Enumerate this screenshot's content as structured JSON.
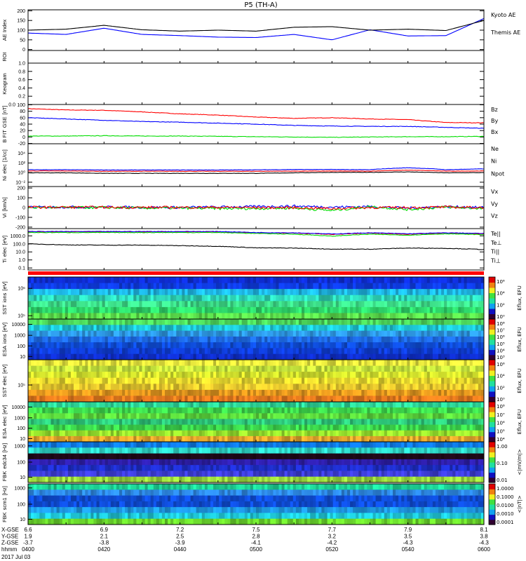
{
  "title": "P5 (TH-A)",
  "date": "2017 Jul 03",
  "chart_data": [
    {
      "id": "ae",
      "type": "line",
      "ylabel": [
        "AE Index"
      ],
      "ylim": [
        -5,
        205
      ],
      "log": false,
      "yticks": [
        {
          "v": 0,
          "t": "0"
        },
        {
          "v": 50,
          "t": "50"
        },
        {
          "v": 100,
          "t": "100"
        },
        {
          "v": 150,
          "t": "150"
        },
        {
          "v": 200,
          "t": "200"
        }
      ],
      "x_minutes": [
        0,
        10,
        20,
        30,
        40,
        50,
        60,
        70,
        80,
        90,
        100,
        110,
        120
      ],
      "series": [
        {
          "name": "Kyoto AE",
          "color": "#0000ff",
          "values": [
            85,
            78,
            110,
            78,
            72,
            64,
            62,
            78,
            50,
            102,
            70,
            72,
            160
          ]
        },
        {
          "name": "Themis AE",
          "color": "#000000",
          "values": [
            100,
            105,
            125,
            102,
            95,
            100,
            95,
            115,
            118,
            100,
            105,
            98,
            150
          ]
        }
      ]
    },
    {
      "id": "roi",
      "type": "line",
      "ylabel": [
        "ROI"
      ],
      "yticks": [],
      "series": []
    },
    {
      "id": "keo",
      "type": "line",
      "ylabel": [
        "Keogram"
      ],
      "ylim": [
        0,
        1
      ],
      "log": false,
      "yticks": [
        {
          "v": 0,
          "t": "0.0"
        },
        {
          "v": 0.2,
          "t": "0.2"
        },
        {
          "v": 0.4,
          "t": "0.4"
        },
        {
          "v": 0.6,
          "t": "0.6"
        },
        {
          "v": 0.8,
          "t": "0.8"
        },
        {
          "v": 1,
          "t": "1.0"
        }
      ],
      "series": []
    },
    {
      "id": "b",
      "type": "line",
      "ylabel": [
        "B FIT",
        "GSE",
        "[nT]"
      ],
      "ylim": [
        -21,
        101
      ],
      "log": false,
      "yticks": [
        {
          "v": -20,
          "t": "-20"
        },
        {
          "v": 0,
          "t": "0"
        },
        {
          "v": 20,
          "t": "20"
        },
        {
          "v": 40,
          "t": "40"
        },
        {
          "v": 60,
          "t": "60"
        },
        {
          "v": 80,
          "t": "80"
        },
        {
          "v": 100,
          "t": "100"
        }
      ],
      "x_minutes": [
        0,
        10,
        20,
        30,
        40,
        50,
        60,
        70,
        80,
        90,
        100,
        110,
        120
      ],
      "series": [
        {
          "name": "Bz",
          "color": "#ff0000",
          "values": [
            88,
            84,
            83,
            78,
            72,
            68,
            62,
            58,
            60,
            56,
            54,
            45,
            44
          ]
        },
        {
          "name": "By",
          "color": "#00dd00",
          "values": [
            3,
            3,
            4,
            3,
            3,
            2,
            1,
            0,
            -1,
            0,
            1,
            1,
            2
          ]
        },
        {
          "name": "Bx",
          "color": "#0000ff",
          "values": [
            60,
            56,
            52,
            48,
            46,
            43,
            40,
            36,
            34,
            33,
            33,
            30,
            27
          ]
        }
      ]
    },
    {
      "id": "ni",
      "type": "line",
      "ylabel": [
        "Ni",
        "elec",
        "[1/cc]"
      ],
      "ylim": [
        0.00126,
        1000000
      ],
      "log": true,
      "yticks": [
        {
          "v": 0.01,
          "t": "10⁻²"
        },
        {
          "v": 1,
          "t": "10⁰"
        },
        {
          "v": 100,
          "t": "10²"
        },
        {
          "v": 10000,
          "t": "10⁴"
        }
      ],
      "x_minutes": [
        0,
        10,
        20,
        30,
        40,
        50,
        60,
        70,
        80,
        90,
        100,
        110,
        120
      ],
      "series": [
        {
          "name": "Ne",
          "color": "#ff0000",
          "values": [
            2.2,
            2.2,
            1.9,
            1.9,
            1.9,
            1.9,
            1.9,
            2,
            2.1,
            2,
            3.2,
            2,
            2.2
          ]
        },
        {
          "name": "Ni",
          "color": "#000000",
          "values": [
            0.9,
            0.9,
            0.7,
            0.7,
            0.7,
            0.7,
            0.7,
            0.9,
            1.1,
            1.1,
            1.4,
            0.9,
            1
          ]
        },
        {
          "name": "Npot",
          "color": "#0000ff",
          "values": [
            4,
            4,
            3.5,
            3.5,
            3.5,
            3.5,
            3.8,
            4.5,
            4.5,
            4,
            10,
            4,
            6
          ]
        }
      ]
    },
    {
      "id": "vi",
      "type": "line",
      "ylabel": [
        "Vi",
        "[km/s]"
      ],
      "ylim": [
        -215,
        215
      ],
      "log": false,
      "yticks": [
        {
          "v": -200,
          "t": "-200"
        },
        {
          "v": -100,
          "t": "-100"
        },
        {
          "v": 0,
          "t": "0"
        },
        {
          "v": 100,
          "t": "100"
        },
        {
          "v": 200,
          "t": "200"
        }
      ],
      "x_minutes": [
        0,
        10,
        20,
        30,
        40,
        50,
        60,
        70,
        80,
        90,
        100,
        110,
        120
      ],
      "series": [
        {
          "name": "Vx",
          "color": "#0000ff",
          "values": [
            5,
            5,
            5,
            3,
            2,
            5,
            10,
            15,
            5,
            10,
            -5,
            10,
            0
          ]
        },
        {
          "name": "Vy",
          "color": "#00dd00",
          "values": [
            0,
            0,
            0,
            -5,
            -5,
            -10,
            -10,
            -5,
            -30,
            10,
            -20,
            5,
            -10
          ]
        },
        {
          "name": "Vz",
          "color": "#ff0000",
          "values": [
            3,
            3,
            3,
            2,
            2,
            3,
            0,
            0,
            -10,
            0,
            0,
            5,
            0
          ]
        }
      ]
    },
    {
      "id": "ti",
      "type": "line",
      "ylabel": [
        "Ti",
        "elec",
        "[eV]"
      ],
      "ylim": [
        0.056,
        8000
      ],
      "log": true,
      "yticks": [
        {
          "v": 0.1,
          "t": "0.1"
        },
        {
          "v": 1,
          "t": "1.0"
        },
        {
          "v": 10,
          "t": "10.0"
        },
        {
          "v": 100,
          "t": "100.0"
        },
        {
          "v": 1000,
          "t": "1000.0"
        }
      ],
      "x_minutes": [
        0,
        10,
        20,
        30,
        40,
        50,
        60,
        70,
        80,
        90,
        100,
        110,
        120
      ],
      "series": [
        {
          "name": "Te||",
          "color": "#000000",
          "values": [
            100,
            75,
            70,
            70,
            60,
            50,
            32,
            30,
            22,
            22,
            30,
            28,
            20
          ]
        },
        {
          "name": "Te⊥",
          "color": "#ff0000",
          "values": [
            3200,
            3200,
            3200,
            3200,
            3200,
            3200,
            2400,
            2200,
            1500,
            2200,
            1600,
            2200,
            1800
          ]
        },
        {
          "name": "Ti||",
          "color": "#00dd00",
          "values": [
            2600,
            2600,
            2600,
            2600,
            2600,
            2600,
            2000,
            1600,
            900,
            1600,
            1200,
            1800,
            1400
          ]
        },
        {
          "name": "Ti⊥",
          "color": "#0000ff",
          "values": [
            3500,
            3500,
            3500,
            3500,
            3500,
            3500,
            2600,
            2400,
            1700,
            2400,
            1800,
            2400,
            2000
          ]
        }
      ]
    },
    {
      "id": "sst_i",
      "type": "heatmap",
      "ylabel": [
        "SST",
        "ions",
        "[eV]"
      ],
      "yticks": [
        {
          "f": 0.27,
          "t": "10⁶"
        },
        {
          "f": 0.92,
          "t": "10⁵"
        }
      ],
      "bands": [
        "#1030e0",
        "#1040f0",
        "#20c0f0",
        "#30e0c0",
        "#40e890",
        "#30e070",
        "#60e850"
      ],
      "cbar": {
        "label": "Eflux, EFU",
        "ticks": [
          "10⁶",
          "10⁴",
          "10²",
          "10⁰"
        ]
      }
    },
    {
      "id": "esa_i",
      "type": "heatmap",
      "ylabel": [
        "ESA",
        "ions",
        "[eV]"
      ],
      "yticks": [
        {
          "f": 0.13,
          "t": "10000"
        },
        {
          "f": 0.4,
          "t": "1000"
        },
        {
          "f": 0.66,
          "t": "100"
        },
        {
          "f": 0.92,
          "t": "10"
        }
      ],
      "bands": [
        "#50e060",
        "#20d0e0",
        "#30a0f0",
        "#2070f0",
        "#1050e0",
        "#1040e0",
        "#1030d0"
      ],
      "cbar": {
        "label": "Eflux, EFU",
        "ticks": [
          "10⁸",
          "10⁷",
          "10⁶",
          "10⁵",
          "10⁴",
          "10³"
        ]
      }
    },
    {
      "id": "sst_e",
      "type": "heatmap",
      "ylabel": [
        "SST",
        "elec",
        "[eV]"
      ],
      "yticks": [
        {
          "f": 0.6,
          "t": "10⁵"
        }
      ],
      "bands": [
        "#f0f040",
        "#d0f040",
        "#e0f030",
        "#f0e030",
        "#f0d030",
        "#f0a020",
        "#f08020"
      ],
      "cbar": {
        "label": "Eflux, EFU",
        "ticks": [
          "10⁶",
          "10⁴",
          "10²",
          "10⁰"
        ]
      }
    },
    {
      "id": "esa_e",
      "type": "heatmap",
      "ylabel": [
        "ESA",
        "elec",
        "[eV]"
      ],
      "yticks": [
        {
          "f": 0.13,
          "t": "10000"
        },
        {
          "f": 0.4,
          "t": "1000"
        },
        {
          "f": 0.66,
          "t": "100"
        },
        {
          "f": 0.92,
          "t": "10"
        }
      ],
      "bands": [
        "#30e0a0",
        "#40e050",
        "#60e040",
        "#30d080",
        "#40e050",
        "#a0f030",
        "#f0b030"
      ],
      "cbar": {
        "label": "Eflux, EFU",
        "ticks": [
          "10⁸",
          "10⁷",
          "10⁶",
          "10⁵",
          "10⁴"
        ]
      }
    },
    {
      "id": "fbk34",
      "type": "heatmap",
      "ylabel": [
        "FBK",
        "edc34",
        "[Hz]"
      ],
      "yticks": [
        {
          "f": 0.1,
          "t": "1000"
        },
        {
          "f": 0.5,
          "t": "100"
        },
        {
          "f": 0.87,
          "t": "10"
        }
      ],
      "bands": [
        "#1080f0",
        "#30e0d0",
        "#200818",
        "#3020b0",
        "#2030d0",
        "#4040e0",
        "#a0e040"
      ],
      "cbar": {
        "label": "<|mV/m|>",
        "ticks": [
          "1.00",
          "0.10",
          "0.01"
        ]
      }
    },
    {
      "id": "fbk_scm",
      "type": "heatmap",
      "ylabel": [
        "FBK",
        "scm1",
        "[Hz]"
      ],
      "yticks": [
        {
          "f": 0.1,
          "t": "1000"
        },
        {
          "f": 0.5,
          "t": "100"
        },
        {
          "f": 0.87,
          "t": "10"
        }
      ],
      "bands": [
        "#20e0a0",
        "#3090f0",
        "#1050e0",
        "#1050e0",
        "#20a0f0",
        "#20d0e0",
        "#70e030"
      ],
      "cbar": {
        "label": "<|nT|>",
        "ticks": [
          "1.0000",
          "0.1000",
          "0.0100",
          "0.0010",
          "0.0001"
        ]
      }
    }
  ],
  "xaxis": {
    "rows": [
      {
        "label": "X-GSE",
        "values": [
          "6.6",
          "6.9",
          "7.2",
          "7.5",
          "7.7",
          "7.9",
          "8.1"
        ]
      },
      {
        "label": "Y-GSE",
        "values": [
          "1.9",
          "2.1",
          "2.5",
          "2.8",
          "3.2",
          "3.5",
          "3.8"
        ]
      },
      {
        "label": "Z-GSE",
        "values": [
          "-3.7",
          "-3.8",
          "-3.9",
          "-4.1",
          "-4.2",
          "-4.3",
          "-4.3"
        ]
      },
      {
        "label": "hhmm",
        "values": [
          "0400",
          "0420",
          "0440",
          "0500",
          "0520",
          "0540",
          "0600"
        ]
      }
    ]
  }
}
